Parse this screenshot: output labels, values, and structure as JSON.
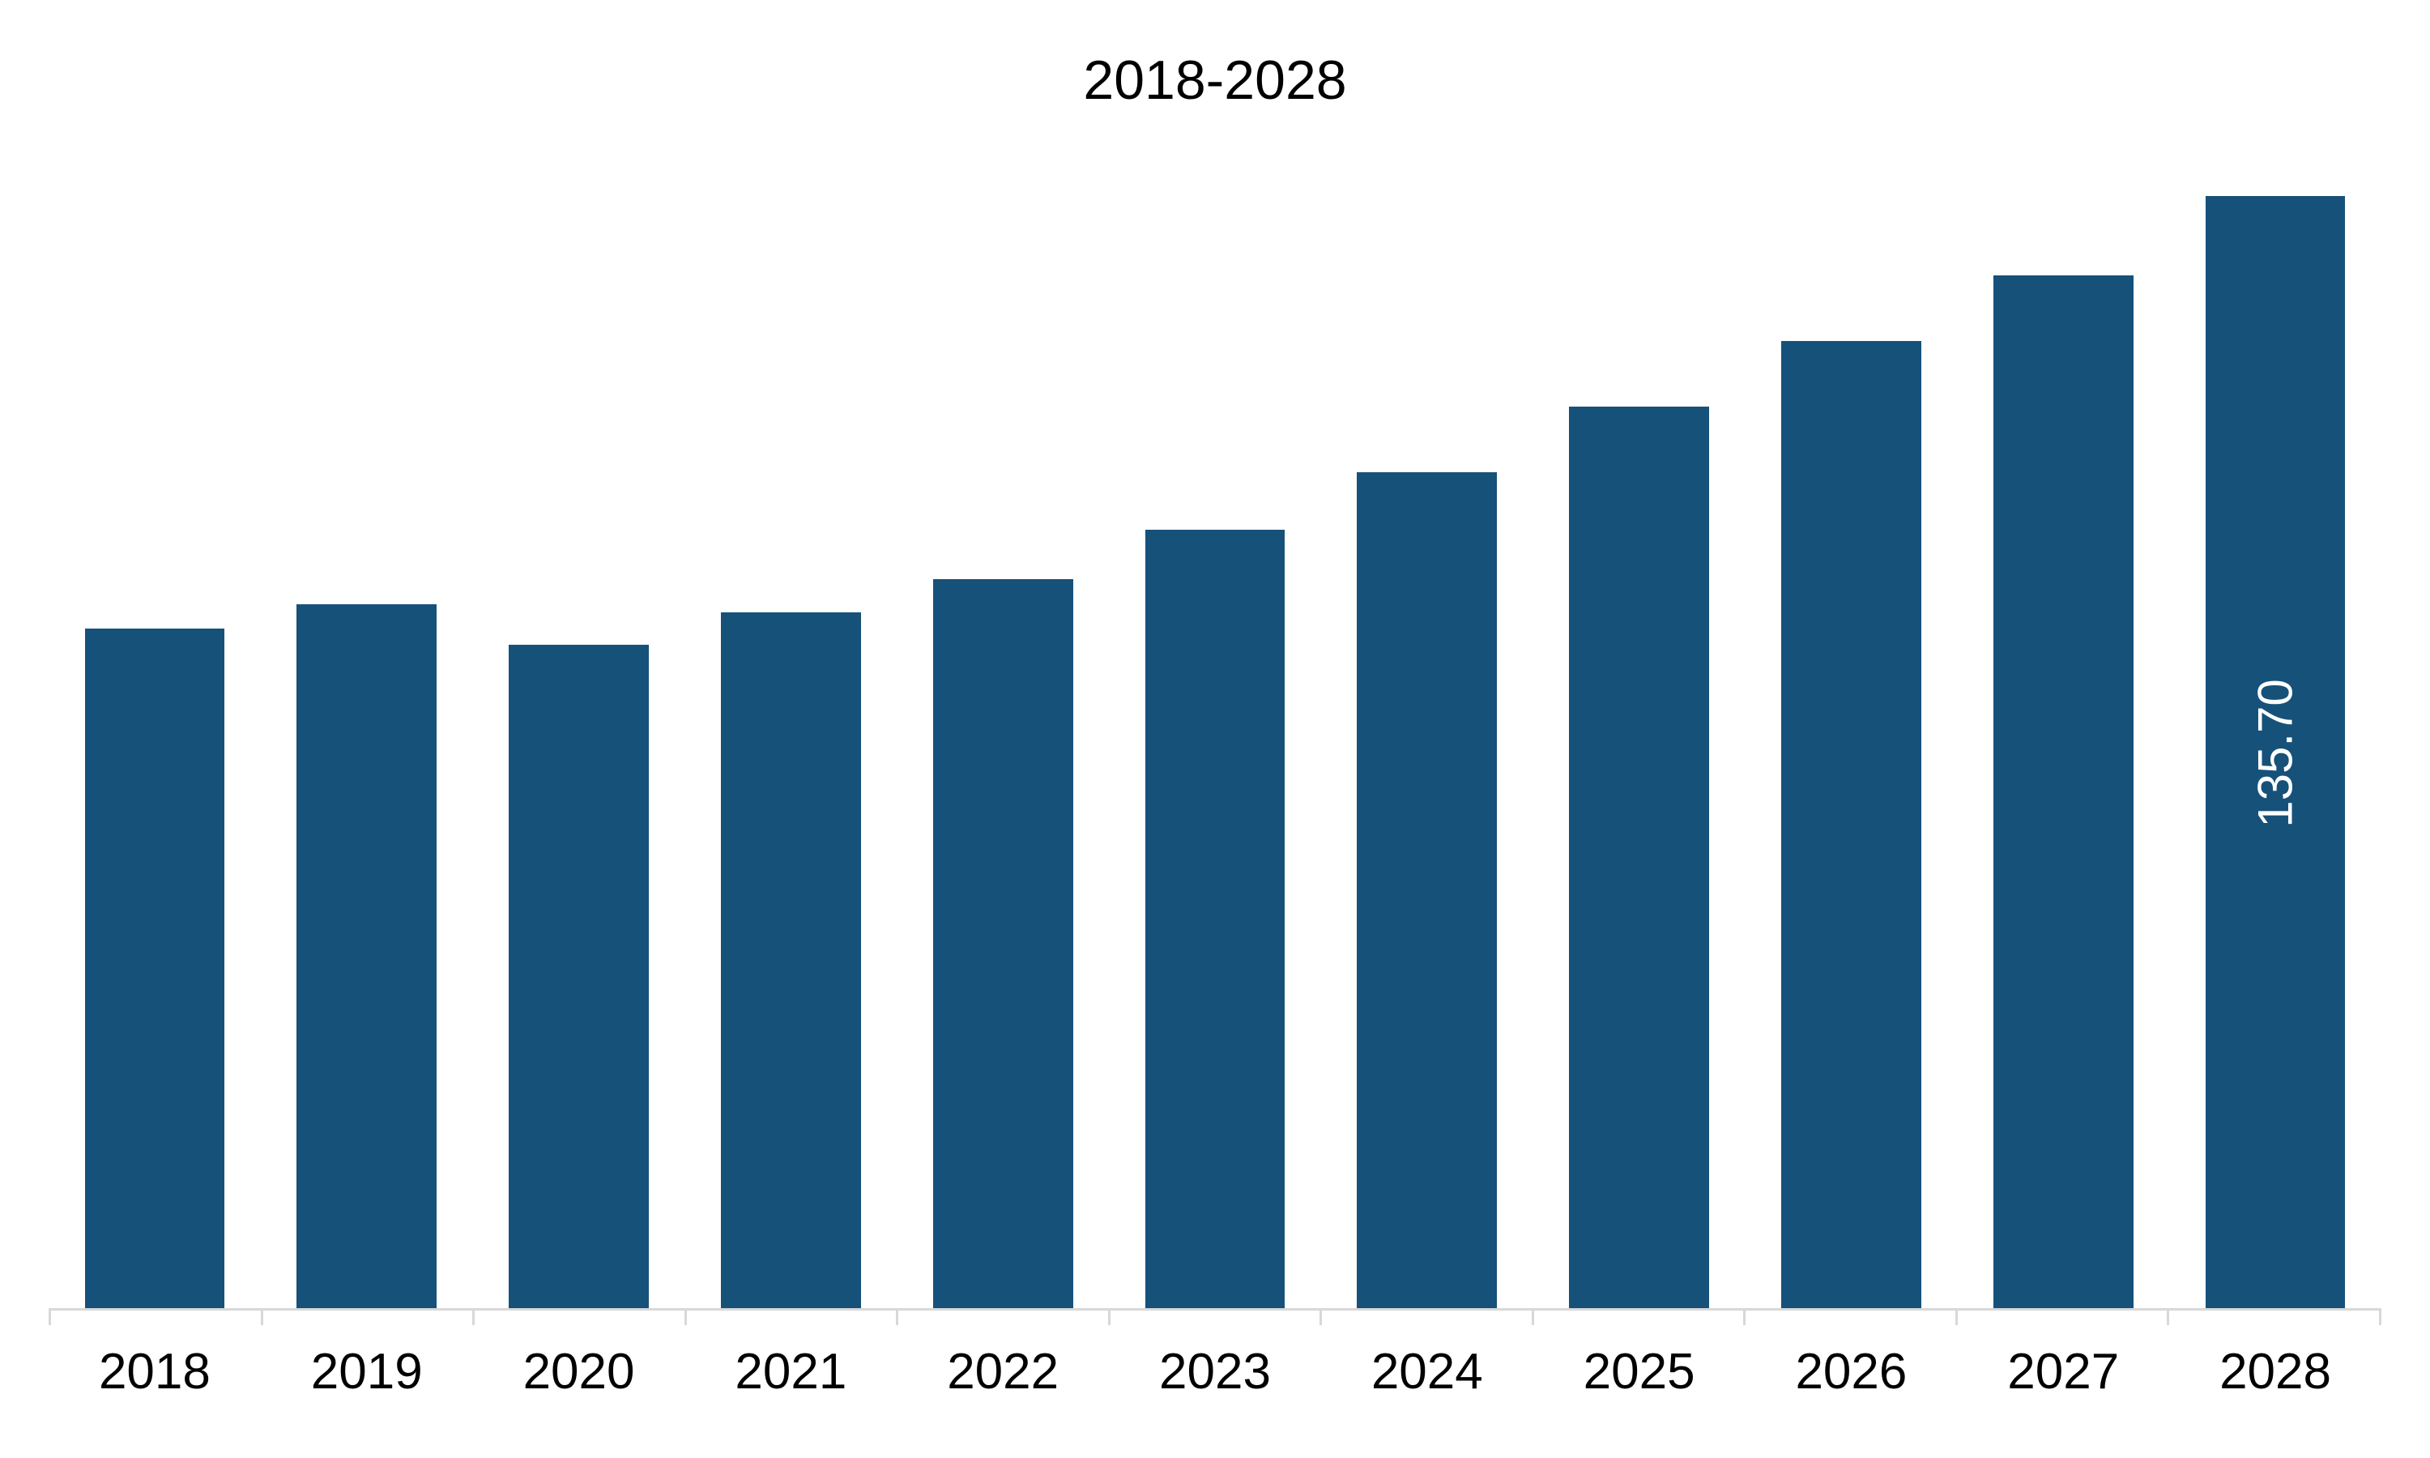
{
  "chart": {
    "type": "bar",
    "title": "2018-2028",
    "title_fontsize": 68,
    "title_color": "#000000",
    "background_color": "#ffffff",
    "categories": [
      "2018",
      "2019",
      "2020",
      "2021",
      "2022",
      "2023",
      "2024",
      "2025",
      "2026",
      "2027",
      "2028"
    ],
    "values": [
      83.0,
      86.0,
      81.0,
      85.0,
      89.0,
      95.0,
      102.0,
      110.0,
      118.0,
      126.0,
      135.7
    ],
    "value_labels": [
      null,
      null,
      null,
      null,
      null,
      null,
      null,
      null,
      null,
      null,
      "135.70"
    ],
    "bar_color": "#16517a",
    "value_label_color": "#ffffff",
    "value_label_fontsize": 60,
    "xlabel_fontsize": 62,
    "xlabel_color": "#000000",
    "ylim": [
      0,
      140
    ],
    "bar_width_ratio": 0.66,
    "axis_line_color": "#d8d8d8",
    "axis_line_width": 3,
    "tick_color": "#d8d8d8",
    "tick_length": 18,
    "grid": false,
    "font_family": "Arial, Helvetica, sans-serif"
  }
}
